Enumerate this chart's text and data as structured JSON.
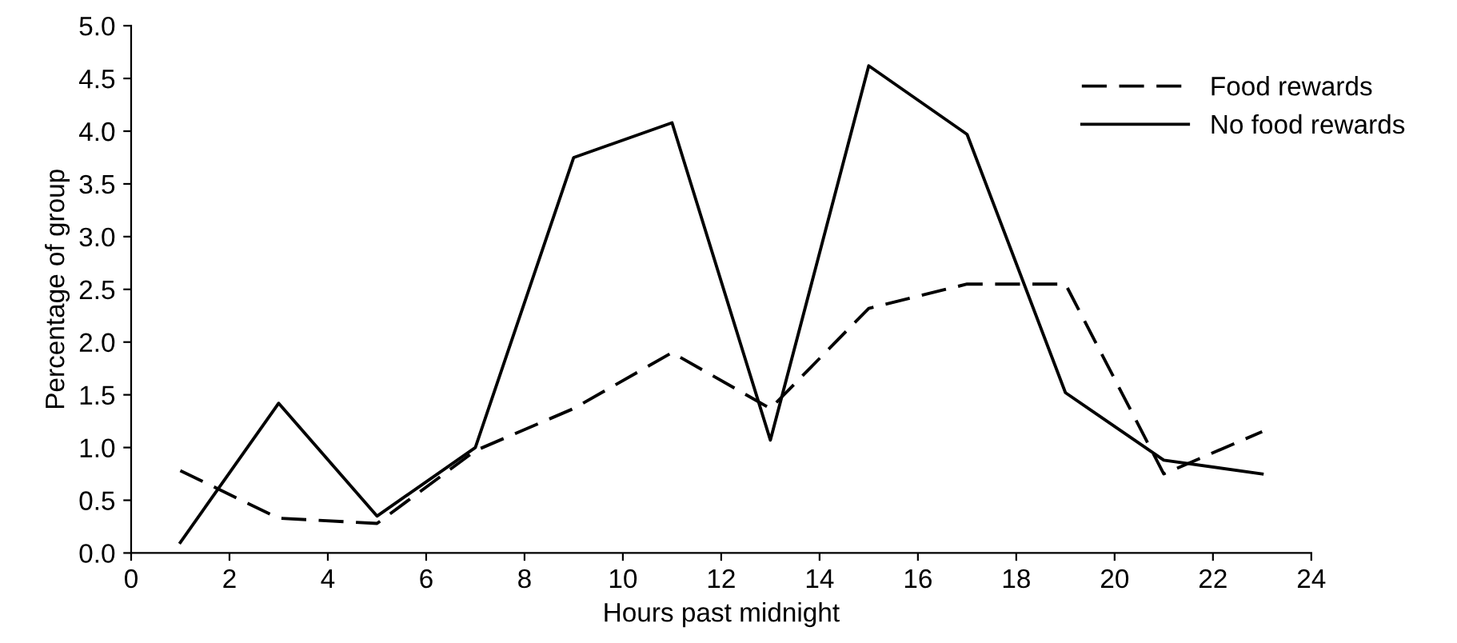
{
  "chart_data": {
    "type": "line",
    "xlabel": "Hours past midnight",
    "ylabel": "Percentage of group",
    "x": [
      1,
      3,
      5,
      7,
      9,
      11,
      13,
      15,
      17,
      19,
      21,
      23
    ],
    "series": [
      {
        "name": "Food rewards",
        "color": "#000000",
        "line_style": "dashed",
        "values": [
          0.78,
          0.33,
          0.28,
          0.97,
          1.37,
          1.9,
          1.37,
          2.32,
          2.55,
          2.55,
          0.75,
          1.15
        ]
      },
      {
        "name": "No food rewards",
        "color": "#000000",
        "line_style": "solid",
        "values": [
          0.1,
          1.42,
          0.35,
          1.0,
          3.75,
          4.08,
          1.07,
          4.62,
          3.97,
          1.52,
          0.88,
          0.75
        ]
      }
    ],
    "xlim": [
      0,
      24
    ],
    "xticks": [
      0,
      2,
      4,
      6,
      8,
      10,
      12,
      14,
      16,
      18,
      20,
      22,
      24
    ],
    "ylim": [
      0,
      5
    ],
    "yticks": [
      {
        "value": 0,
        "label": "0.0"
      },
      {
        "value": 0.5,
        "label": "0.5"
      },
      {
        "value": 1,
        "label": "1.0"
      },
      {
        "value": 1.5,
        "label": "1.5"
      },
      {
        "value": 2,
        "label": "2.0"
      },
      {
        "value": 2.5,
        "label": "2.5"
      },
      {
        "value": 3,
        "label": "3.0"
      },
      {
        "value": 3.5,
        "label": "3.5"
      },
      {
        "value": 4,
        "label": "4.0"
      },
      {
        "value": 4.5,
        "label": "4.5"
      },
      {
        "value": 5,
        "label": "5.0"
      }
    ],
    "grid": false,
    "legend": "top right",
    "marker": "none"
  }
}
